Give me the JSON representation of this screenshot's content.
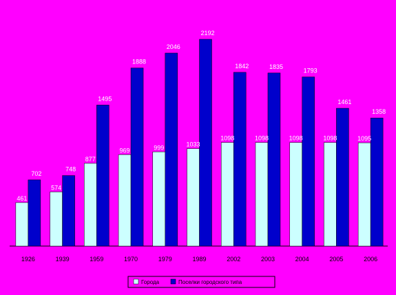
{
  "chart_data": {
    "type": "bar",
    "categories": [
      "1926",
      "1939",
      "1959",
      "1970",
      "1979",
      "1989",
      "2002",
      "2003",
      "2004",
      "2005",
      "2006"
    ],
    "series": [
      {
        "name": "Города",
        "color": "#ccffff",
        "values": [
          461,
          574,
          877,
          969,
          999,
          1033,
          1098,
          1098,
          1098,
          1098,
          1095
        ],
        "labels": [
          "461",
          "574",
          "877",
          "969",
          "999",
          "1033",
          "1098",
          "1098",
          "1098",
          "1098",
          "1095"
        ]
      },
      {
        "name": "Поселки городского типа",
        "color": "#0000cc",
        "values": [
          702,
          748,
          1495,
          1888,
          2046,
          2192,
          1842,
          1835,
          1793,
          1461,
          1358
        ],
        "labels": [
          "702",
          "748",
          "1495",
          "1888",
          "2046",
          "2192",
          "1842",
          "1835",
          "1793",
          "1461",
          "1358"
        ]
      }
    ],
    "ylim": [
      0,
      2192
    ],
    "grid": false,
    "legend": "bottom-center",
    "background": "#ff00ff",
    "title": "",
    "xlabel": "",
    "ylabel": ""
  }
}
